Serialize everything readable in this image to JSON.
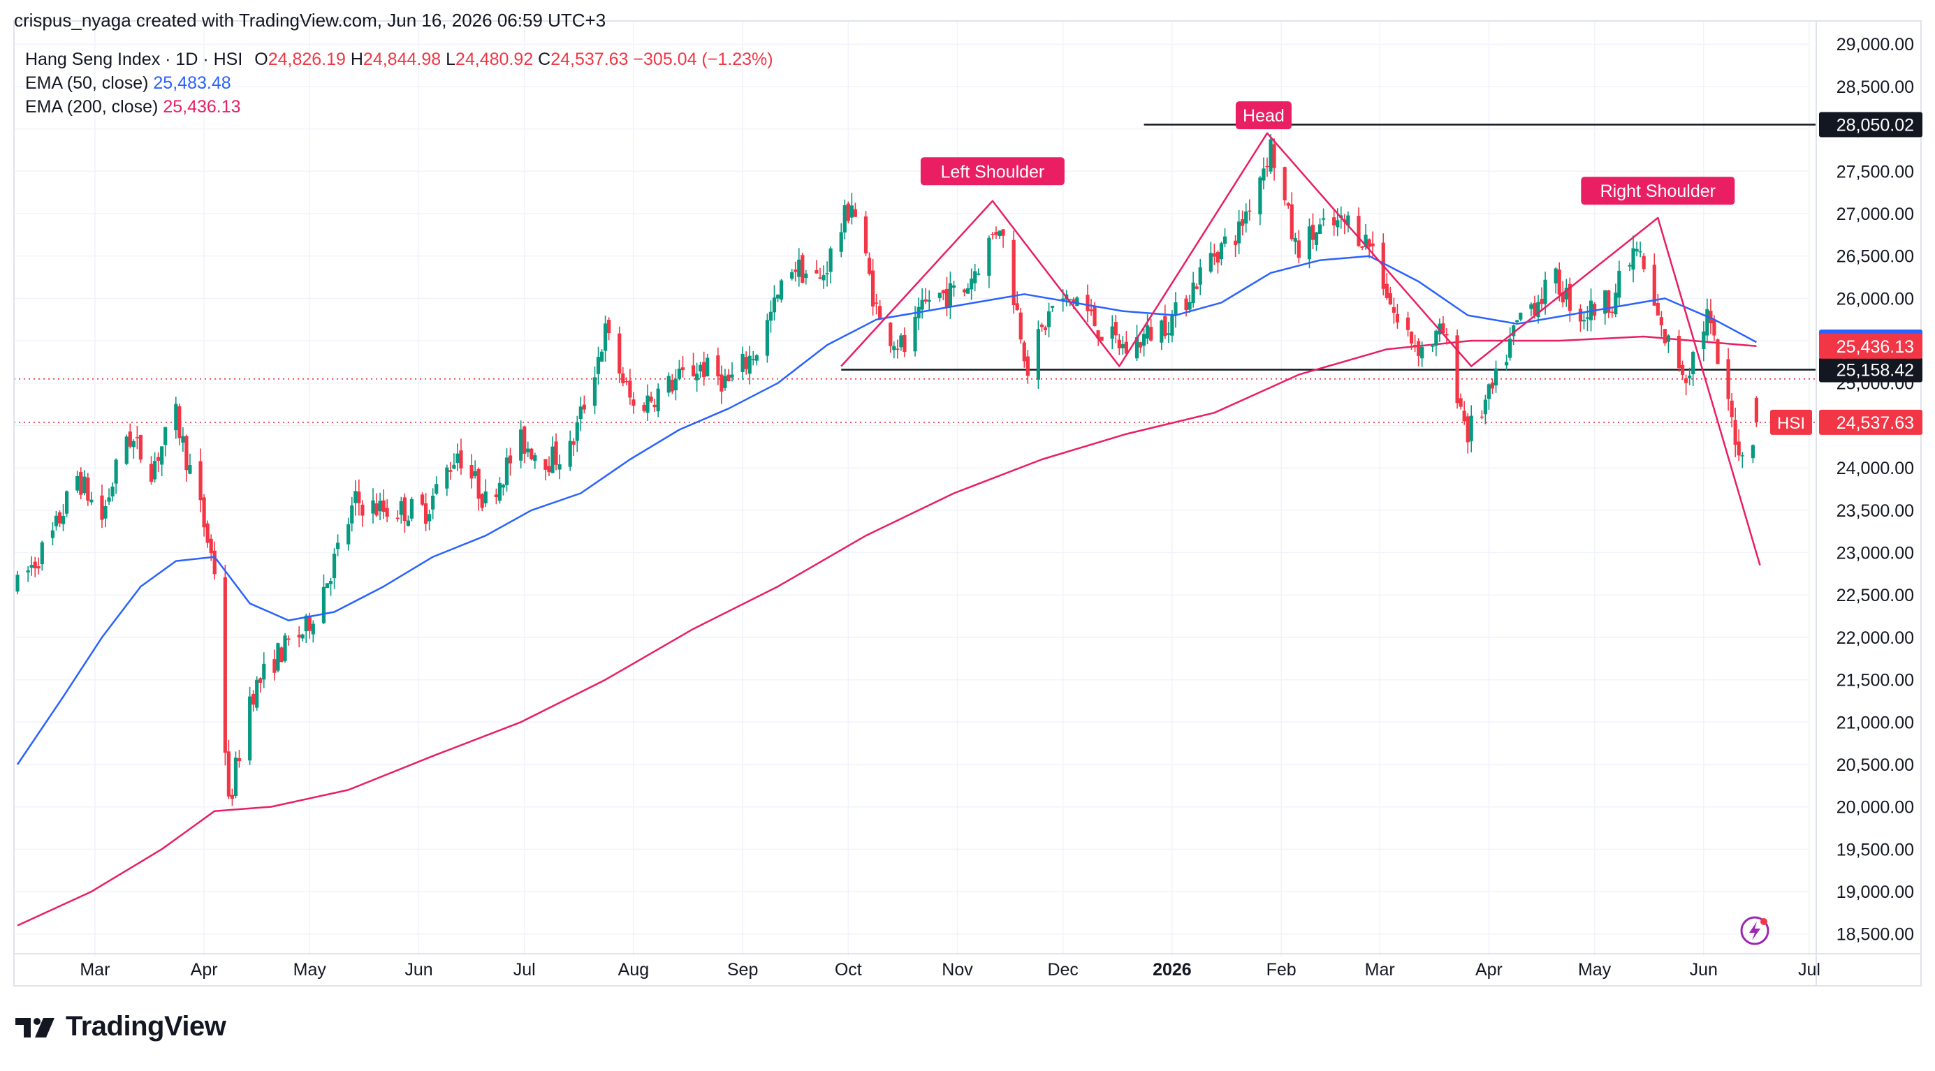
{
  "credit": "crispus_nyaga created with TradingView.com, Jun 16, 2026 06:59 UTC+3",
  "legend": {
    "symbol": "Hang Seng Index · 1D · HSI",
    "open_label": "O",
    "open": "24,826.19",
    "high_label": "H",
    "high": "24,844.98",
    "low_label": "L",
    "low": "24,480.92",
    "close_label": "C",
    "close": "24,537.63",
    "change": "−305.04 (−1.23%)",
    "ema50_label": "EMA (50, close)",
    "ema50_value": "25,483.48",
    "ema200_label": "EMA (200, close)",
    "ema200_value": "25,436.13"
  },
  "branding": {
    "logo_text": "TradingView"
  },
  "colors": {
    "up": "#089981",
    "down": "#f23645",
    "ema50": "#2962ff",
    "ema200": "#e91e63",
    "pattern": "#e91e63",
    "grid": "#f0f3fa"
  },
  "chart_data": {
    "type": "candlestick",
    "y_range": [
      18300,
      29150
    ],
    "y_ticks": [
      "29,000.00",
      "28,500.00",
      "28,000.00",
      "27,500.00",
      "27,000.00",
      "26,500.00",
      "26,000.00",
      "25,500.00",
      "25,000.00",
      "24,500.00",
      "24,000.00",
      "23,500.00",
      "23,000.00",
      "22,500.00",
      "22,000.00",
      "21,500.00",
      "21,000.00",
      "20,500.00",
      "20,000.00",
      "19,500.00",
      "19,000.00",
      "18,500.00"
    ],
    "y_tick_values": [
      29000,
      28500,
      28000,
      27500,
      27000,
      26500,
      26000,
      25500,
      25000,
      24500,
      24000,
      23500,
      23000,
      22500,
      22000,
      21500,
      21000,
      20500,
      20000,
      19500,
      19000,
      18500
    ],
    "x_ticks": [
      {
        "label": "Mar",
        "date": "2025-03-01"
      },
      {
        "label": "Apr",
        "date": "2025-04-01"
      },
      {
        "label": "May",
        "date": "2025-05-01"
      },
      {
        "label": "Jun",
        "date": "2025-06-01"
      },
      {
        "label": "Jul",
        "date": "2025-07-01"
      },
      {
        "label": "Aug",
        "date": "2025-08-01"
      },
      {
        "label": "Sep",
        "date": "2025-09-01"
      },
      {
        "label": "Oct",
        "date": "2025-10-01"
      },
      {
        "label": "Nov",
        "date": "2025-11-01"
      },
      {
        "label": "Dec",
        "date": "2025-12-01"
      },
      {
        "label": "2026",
        "date": "2026-01-01",
        "bold": true
      },
      {
        "label": "Feb",
        "date": "2026-02-01"
      },
      {
        "label": "Mar",
        "date": "2026-03-01"
      },
      {
        "label": "Apr",
        "date": "2026-04-01"
      },
      {
        "label": "May",
        "date": "2026-05-01"
      },
      {
        "label": "Jun",
        "date": "2026-06-01"
      },
      {
        "label": "Jul",
        "date": "2026-07-01"
      }
    ],
    "x_range": [
      "2025-02-06",
      "2026-07-01"
    ],
    "price_path": [
      [
        "2025-02-07",
        22600
      ],
      [
        "2025-02-17",
        23200
      ],
      [
        "2025-02-24",
        23900
      ],
      [
        "2025-03-03",
        23400
      ],
      [
        "2025-03-10",
        24400
      ],
      [
        "2025-03-17",
        24000
      ],
      [
        "2025-03-24",
        24600
      ],
      [
        "2025-03-31",
        23500
      ],
      [
        "2025-04-04",
        22800
      ],
      [
        "2025-04-08",
        20000
      ],
      [
        "2025-04-14",
        21300
      ],
      [
        "2025-04-22",
        21800
      ],
      [
        "2025-04-30",
        22100
      ],
      [
        "2025-05-08",
        22900
      ],
      [
        "2025-05-14",
        23600
      ],
      [
        "2025-05-22",
        23500
      ],
      [
        "2025-06-03",
        23500
      ],
      [
        "2025-06-12",
        24200
      ],
      [
        "2025-06-20",
        23600
      ],
      [
        "2025-06-30",
        24300
      ],
      [
        "2025-07-08",
        24100
      ],
      [
        "2025-07-14",
        24200
      ],
      [
        "2025-07-24",
        25600
      ],
      [
        "2025-08-01",
        24700
      ],
      [
        "2025-08-12",
        25000
      ],
      [
        "2025-08-20",
        25200
      ],
      [
        "2025-08-28",
        25000
      ],
      [
        "2025-09-05",
        25400
      ],
      [
        "2025-09-15",
        26400
      ],
      [
        "2025-09-23",
        26200
      ],
      [
        "2025-10-02",
        27150
      ],
      [
        "2025-10-10",
        25700
      ],
      [
        "2025-10-17",
        25400
      ],
      [
        "2025-10-24",
        26000
      ],
      [
        "2025-11-03",
        26100
      ],
      [
        "2025-11-13",
        26900
      ],
      [
        "2025-11-21",
        25200
      ],
      [
        "2025-11-28",
        25900
      ],
      [
        "2025-12-05",
        26000
      ],
      [
        "2025-12-12",
        25600
      ],
      [
        "2025-12-19",
        25400
      ],
      [
        "2026-01-02",
        25800
      ],
      [
        "2026-01-12",
        26500
      ],
      [
        "2026-01-20",
        26800
      ],
      [
        "2026-01-29",
        27800
      ],
      [
        "2026-02-05",
        26600
      ],
      [
        "2026-02-12",
        26800
      ],
      [
        "2026-02-20",
        26900
      ],
      [
        "2026-02-27",
        26600
      ],
      [
        "2026-03-06",
        25700
      ],
      [
        "2026-03-13",
        25400
      ],
      [
        "2026-03-19",
        25600
      ],
      [
        "2026-03-26",
        24400
      ],
      [
        "2026-04-02",
        24900
      ],
      [
        "2026-04-10",
        25800
      ],
      [
        "2026-04-20",
        26200
      ],
      [
        "2026-04-27",
        25800
      ],
      [
        "2026-05-06",
        26000
      ],
      [
        "2026-05-13",
        26600
      ],
      [
        "2026-05-20",
        25600
      ],
      [
        "2026-05-27",
        25100
      ],
      [
        "2026-06-02",
        25800
      ],
      [
        "2026-06-08",
        24700
      ],
      [
        "2026-06-12",
        24100
      ],
      [
        "2026-06-16",
        24537.63
      ]
    ],
    "series": [
      {
        "name": "EMA (50, close)",
        "points": [
          [
            "2025-02-07",
            20500
          ],
          [
            "2025-02-20",
            21300
          ],
          [
            "2025-03-03",
            22000
          ],
          [
            "2025-03-14",
            22600
          ],
          [
            "2025-03-24",
            22900
          ],
          [
            "2025-04-04",
            22950
          ],
          [
            "2025-04-14",
            22400
          ],
          [
            "2025-04-25",
            22200
          ],
          [
            "2025-05-08",
            22300
          ],
          [
            "2025-05-22",
            22600
          ],
          [
            "2025-06-05",
            22950
          ],
          [
            "2025-06-20",
            23200
          ],
          [
            "2025-07-03",
            23500
          ],
          [
            "2025-07-17",
            23700
          ],
          [
            "2025-07-31",
            24100
          ],
          [
            "2025-08-14",
            24450
          ],
          [
            "2025-08-28",
            24700
          ],
          [
            "2025-09-11",
            25000
          ],
          [
            "2025-09-25",
            25450
          ],
          [
            "2025-10-09",
            25750
          ],
          [
            "2025-10-23",
            25850
          ],
          [
            "2025-11-06",
            25950
          ],
          [
            "2025-11-20",
            26050
          ],
          [
            "2025-12-04",
            25950
          ],
          [
            "2025-12-18",
            25850
          ],
          [
            "2026-01-02",
            25800
          ],
          [
            "2026-01-15",
            25950
          ],
          [
            "2026-01-29",
            26300
          ],
          [
            "2026-02-12",
            26450
          ],
          [
            "2026-02-26",
            26500
          ],
          [
            "2026-03-12",
            26200
          ],
          [
            "2026-03-26",
            25800
          ],
          [
            "2026-04-09",
            25700
          ],
          [
            "2026-04-23",
            25800
          ],
          [
            "2026-05-07",
            25900
          ],
          [
            "2026-05-21",
            26000
          ],
          [
            "2026-06-04",
            25750
          ],
          [
            "2026-06-16",
            25483.48
          ]
        ]
      },
      {
        "name": "EMA (200, close)",
        "points": [
          [
            "2025-02-07",
            18600
          ],
          [
            "2025-02-28",
            19000
          ],
          [
            "2025-03-20",
            19500
          ],
          [
            "2025-04-04",
            19950
          ],
          [
            "2025-04-20",
            20000
          ],
          [
            "2025-05-12",
            20200
          ],
          [
            "2025-06-05",
            20600
          ],
          [
            "2025-06-30",
            21000
          ],
          [
            "2025-07-24",
            21500
          ],
          [
            "2025-08-18",
            22100
          ],
          [
            "2025-09-11",
            22600
          ],
          [
            "2025-10-06",
            23200
          ],
          [
            "2025-10-31",
            23700
          ],
          [
            "2025-11-25",
            24100
          ],
          [
            "2025-12-19",
            24400
          ],
          [
            "2026-01-13",
            24650
          ],
          [
            "2026-02-06",
            25100
          ],
          [
            "2026-03-03",
            25400
          ],
          [
            "2026-03-27",
            25500
          ],
          [
            "2026-04-21",
            25500
          ],
          [
            "2026-05-15",
            25550
          ],
          [
            "2026-06-16",
            25436.13
          ]
        ]
      }
    ],
    "horizontal_levels": [
      {
        "value": 28050.02,
        "label": "28,050.02",
        "from": "2025-12-24",
        "style": "solid",
        "color": "#131722"
      },
      {
        "value": 25158.42,
        "label": "25,158.42",
        "from": "2025-09-29",
        "style": "solid",
        "color": "#131722"
      },
      {
        "value": 25050,
        "from": "2025-02-06",
        "style": "dotted",
        "color": "#f23645"
      },
      {
        "value": 24537.63,
        "from": "2025-02-06",
        "style": "dotted",
        "color": "#f23645"
      }
    ],
    "price_badges": [
      {
        "label": "25,483.48",
        "value": 25483.48,
        "color": "#2962ff"
      },
      {
        "label": "25,436.13",
        "value": 25436.13,
        "color": "#f23645"
      },
      {
        "label": "24,537.63",
        "value": 24537.63,
        "color": "#f23645",
        "tag": "HSI"
      }
    ],
    "pattern_lines": [
      [
        [
          "2025-09-29",
          25200
        ],
        [
          "2025-11-11",
          27150
        ],
        [
          "2025-12-17",
          25200
        ],
        [
          "2026-01-28",
          27950
        ],
        [
          "2026-03-27",
          25200
        ],
        [
          "2026-05-19",
          26950
        ],
        [
          "2026-06-17",
          22850
        ]
      ]
    ],
    "annotations": [
      {
        "text": "Left Shoulder",
        "date": "2025-11-11",
        "value": 27500
      },
      {
        "text": "Head",
        "date": "2026-01-27",
        "value": 28160
      },
      {
        "text": "Right Shoulder",
        "date": "2026-05-19",
        "value": 27270
      }
    ],
    "last_price": 24537.63
  }
}
